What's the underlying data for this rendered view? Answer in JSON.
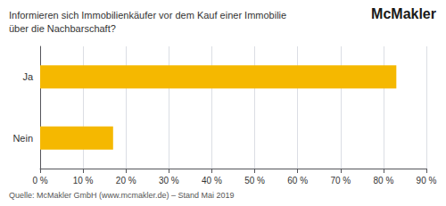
{
  "chart_data": {
    "type": "bar",
    "orientation": "horizontal",
    "title": "Informieren sich Immobilienkäufer vor dem Kauf einer Immobilie\nüber die Nachbarschaft?",
    "annotations": [
      "McMakler",
      "Quelle: McMakler GmbH (www.mcmakler.de) – Stand Mai 2019"
    ],
    "categories": [
      "Nein",
      "Ja"
    ],
    "values": [
      17,
      83
    ],
    "color": "#F5B800",
    "xlim": [
      0,
      90
    ],
    "xticks": [
      {
        "value": 0,
        "label": "0 %"
      },
      {
        "value": 10,
        "label": "10 %"
      },
      {
        "value": 20,
        "label": "20 %"
      },
      {
        "value": 30,
        "label": "30 %"
      },
      {
        "value": 40,
        "label": "40 %"
      },
      {
        "value": 50,
        "label": "50 %"
      },
      {
        "value": 60,
        "label": "60 %"
      },
      {
        "value": 70,
        "label": "70 %"
      },
      {
        "value": 80,
        "label": "80 %"
      },
      {
        "value": 90,
        "label": "90 %"
      }
    ],
    "grid": true
  }
}
